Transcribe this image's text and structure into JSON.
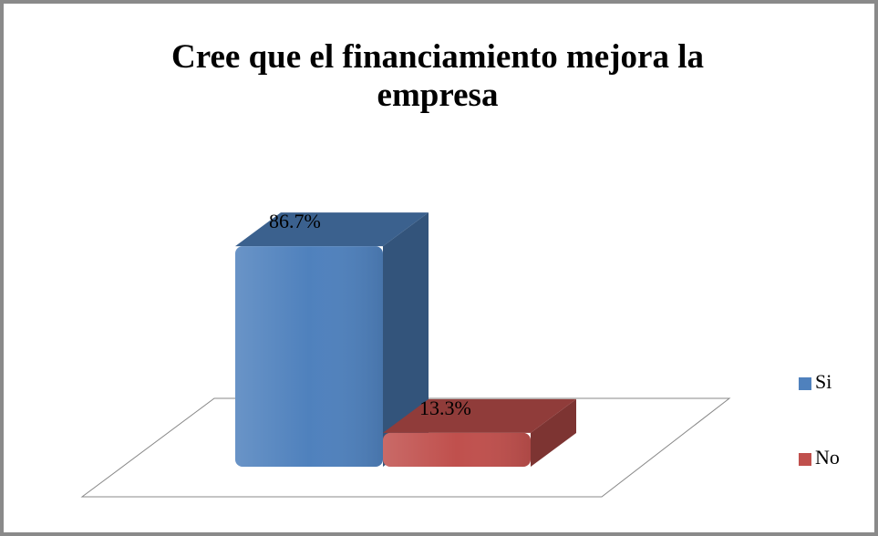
{
  "chart_data": {
    "type": "bar3d",
    "title": "Cree que el financiamiento mejora la empresa",
    "series": [
      {
        "name": "Si",
        "color": "#4f81bd",
        "values": [
          86.7
        ],
        "value_labels": [
          "86.7%"
        ]
      },
      {
        "name": "No",
        "color": "#c0504d",
        "values": [
          13.3
        ],
        "value_labels": [
          "13.3%"
        ]
      }
    ],
    "legend": "right"
  }
}
